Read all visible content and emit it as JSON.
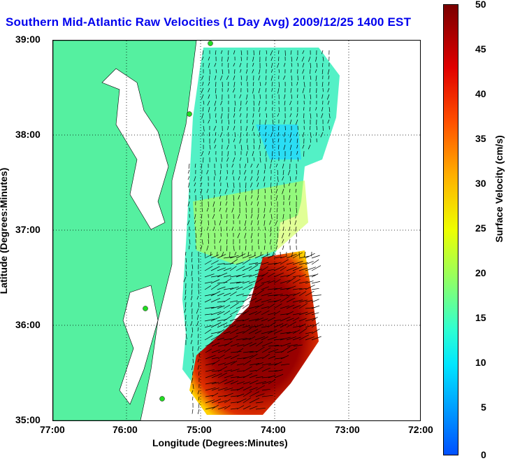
{
  "title": "Southern Mid-Atlantic Raw Velocities (1 Day Avg) 2009/12/25 1400 EST",
  "xlabel": "Longitude (Degrees:Minutes)",
  "ylabel": "Latitude (Degrees:Minutes)",
  "xticks": [
    "77:00",
    "76:00",
    "75:00",
    "74:00",
    "73:00",
    "72:00"
  ],
  "yticks": [
    "39:00",
    "38:00",
    "37:00",
    "36:00",
    "35:00"
  ],
  "colorbar": {
    "label": "Surface Velocity (cm/s)",
    "ticks": [
      "50",
      "45",
      "40",
      "35",
      "30",
      "25",
      "20",
      "15",
      "10",
      "5",
      "0"
    ],
    "min": 0,
    "max": 50
  },
  "colors": {
    "land": "#55f0a0",
    "ocean": "#ffffff",
    "title": "#0000ee"
  }
}
